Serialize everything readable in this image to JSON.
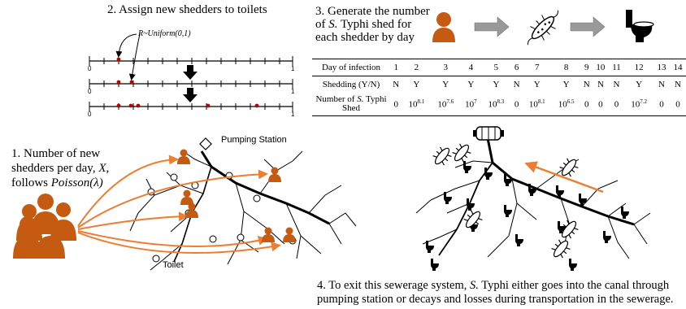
{
  "step1": {
    "line1": "1. Number of new",
    "line2": "shedders per day, ",
    "var_x": "X",
    "line3": "follows ",
    "poisson": "Poisson(λ)"
  },
  "step2": {
    "title": "2. Assign new shedders to toilets",
    "formula": "R~Uniform(0,1)",
    "axis_start": "0",
    "axis_end": "1"
  },
  "step3": {
    "line1": "3. Generate the number",
    "line2a": "of ",
    "organism": "S.",
    "line2b": " Typhi shed for",
    "line3": "each shedder by day"
  },
  "step4": {
    "line1a": "4. To exit this sewerage system, ",
    "organism": "S.",
    "line1b": " Typhi either goes into the canal through",
    "line2": "pumping station or decays and losses during transportation in the sewerage."
  },
  "labels": {
    "pumping_station": "Pumping Station",
    "toilet": "Toilet"
  },
  "colors": {
    "shedder": "#c55a11",
    "flow_arrow": "#ed7d31",
    "dot": "#c00000",
    "grey_arrow": "#999999"
  },
  "icons": [
    "person-icon",
    "bacteria-icon",
    "toilet-icon",
    "pump-icon"
  ],
  "table": {
    "row_labels": {
      "day": "Day of infection",
      "shed": "Shedding (Y/N)",
      "num_a": "Number of ",
      "num_org": "S.",
      "num_b": " Typhi",
      "num_c": "Shed"
    },
    "days": [
      "1",
      "2",
      "3",
      "4",
      "5",
      "6",
      "7",
      "8",
      "9",
      "10",
      "11",
      "12",
      "13",
      "14"
    ],
    "shedding": [
      "N",
      "Y",
      "Y",
      "Y",
      "Y",
      "N",
      "Y",
      "Y",
      "N",
      "N",
      "N",
      "Y",
      "N",
      "N"
    ],
    "shed_counts": [
      {
        "base": "0",
        "exp": ""
      },
      {
        "base": "10",
        "exp": "8.1"
      },
      {
        "base": "10",
        "exp": "7.6"
      },
      {
        "base": "10",
        "exp": "7"
      },
      {
        "base": "10",
        "exp": "8.3"
      },
      {
        "base": "0",
        "exp": ""
      },
      {
        "base": "10",
        "exp": "8.1"
      },
      {
        "base": "10",
        "exp": "6.5"
      },
      {
        "base": "0",
        "exp": ""
      },
      {
        "base": "0",
        "exp": ""
      },
      {
        "base": "0",
        "exp": ""
      },
      {
        "base": "10",
        "exp": "7.2"
      },
      {
        "base": "0",
        "exp": ""
      },
      {
        "base": "0",
        "exp": ""
      }
    ]
  }
}
